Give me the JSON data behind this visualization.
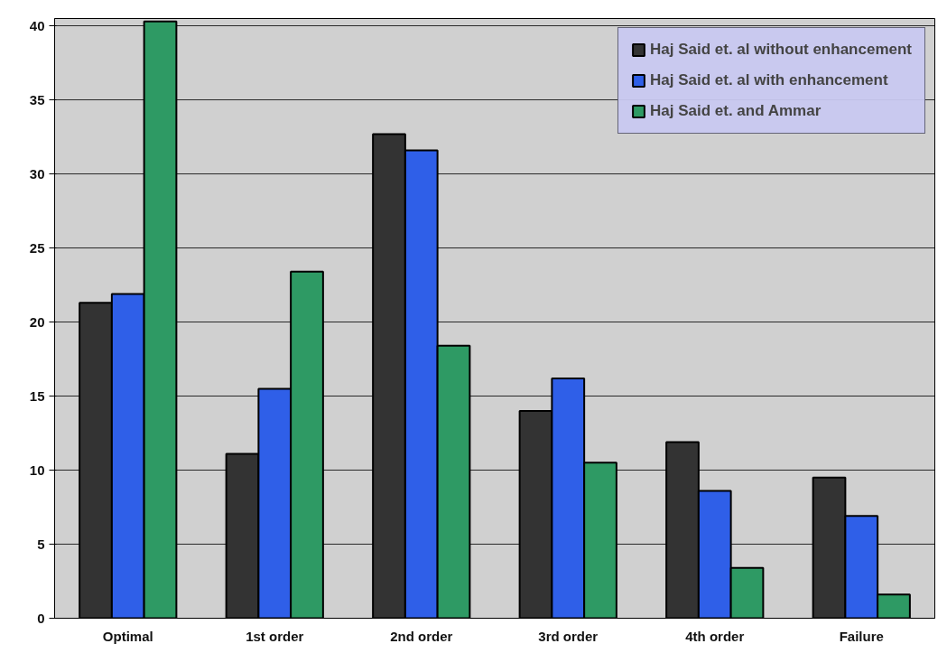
{
  "chart_data": {
    "type": "bar",
    "categories": [
      "Optimal",
      "1st order",
      "2nd order",
      "3rd order",
      "4th order",
      "Failure"
    ],
    "series": [
      {
        "name": "Haj Said et. al without enhancement",
        "color": "#333333",
        "values": [
          21.3,
          11.1,
          32.7,
          14.0,
          11.9,
          9.5
        ]
      },
      {
        "name": "Haj Said et. al with enhancement",
        "color": "#2f5fe8",
        "values": [
          21.9,
          15.5,
          31.6,
          16.2,
          8.6,
          6.9
        ]
      },
      {
        "name": "Haj Said et. and Ammar",
        "color": "#2e9a64",
        "values": [
          40.3,
          23.4,
          18.4,
          10.5,
          3.4,
          1.6
        ]
      }
    ],
    "ylim": [
      0,
      40.5
    ],
    "yticks": [
      0,
      5,
      10,
      15,
      20,
      25,
      30,
      35,
      40
    ],
    "grid": "y",
    "legend": "top right"
  }
}
